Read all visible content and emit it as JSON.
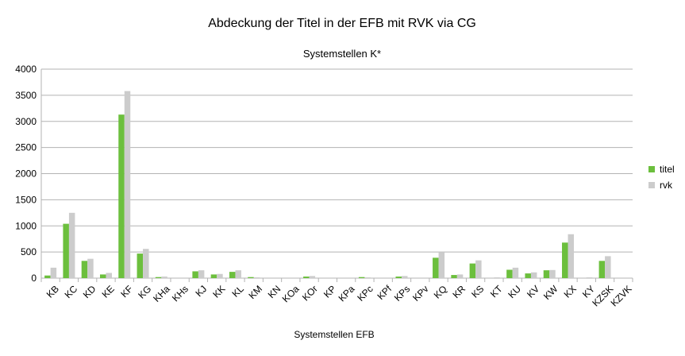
{
  "chart_data": {
    "type": "bar",
    "title": "Abdeckung der Titel in der EFB mit RVK via CG",
    "subtitle": "Systemstellen K*",
    "xlabel": "Systemstellen EFB",
    "ylabel": "",
    "ylim": [
      0,
      4000
    ],
    "yticks": [
      0,
      500,
      1000,
      1500,
      2000,
      2500,
      3000,
      3500,
      4000
    ],
    "grid": true,
    "legend_position": "right",
    "categories": [
      "KB",
      "KC",
      "KD",
      "KE",
      "KF",
      "KG",
      "KHa",
      "KHs",
      "KJ",
      "KK",
      "KL",
      "KM",
      "KN",
      "KOa",
      "KOr",
      "KP",
      "KPa",
      "KPc",
      "KPf",
      "KPs",
      "KPv",
      "KQ",
      "KR",
      "KS",
      "KT",
      "KU",
      "KV",
      "KW",
      "KX",
      "KY",
      "KZSK",
      "KZVK"
    ],
    "series": [
      {
        "name": "titel",
        "color": "#6cbf3d",
        "values": [
          50,
          1040,
          330,
          70,
          3130,
          470,
          20,
          0,
          130,
          70,
          120,
          20,
          0,
          0,
          30,
          0,
          0,
          20,
          0,
          30,
          0,
          390,
          60,
          280,
          0,
          160,
          90,
          150,
          680,
          0,
          330,
          0
        ]
      },
      {
        "name": "rvk",
        "color": "#cccccc",
        "values": [
          200,
          1250,
          370,
          100,
          3580,
          560,
          30,
          0,
          150,
          80,
          150,
          15,
          0,
          0,
          40,
          0,
          0,
          15,
          0,
          40,
          0,
          490,
          70,
          340,
          15,
          200,
          110,
          155,
          840,
          15,
          420,
          0
        ]
      }
    ]
  }
}
